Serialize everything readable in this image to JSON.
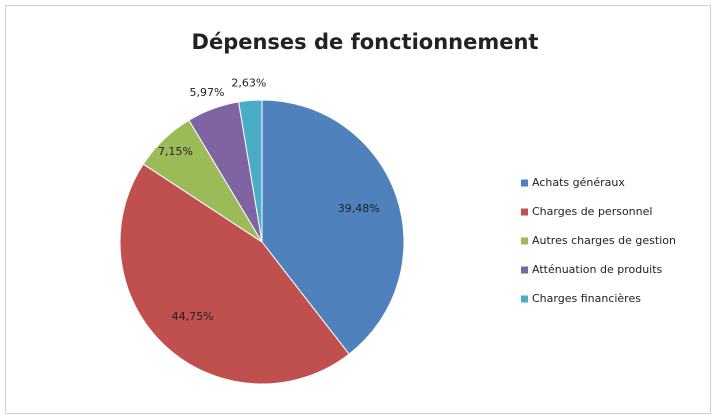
{
  "chart_data": {
    "type": "pie",
    "title": "Dépenses de fonctionnement",
    "categories": [
      "Achats généraux",
      "Charges de personnel",
      "Autres charges de gestion",
      "Atténuation de produits",
      "Charges financières"
    ],
    "values": [
      39.48,
      44.75,
      7.15,
      5.97,
      2.63
    ],
    "value_labels": [
      "39,48%",
      "44,75%",
      "7,15%",
      "5,97%",
      "2,63%"
    ],
    "colors": [
      "#4f81bd",
      "#c0504d",
      "#9bbb59",
      "#8064a2",
      "#4bacc6"
    ],
    "legend": "right"
  }
}
